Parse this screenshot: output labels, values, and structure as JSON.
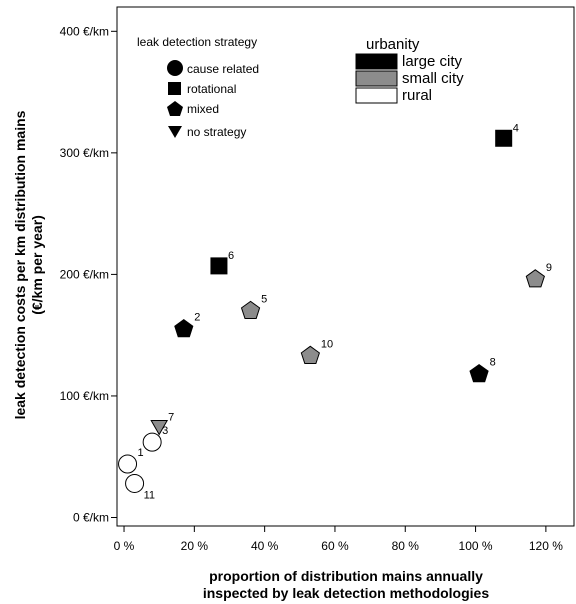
{
  "chart_data": {
    "type": "scatter",
    "xlabel": [
      "proportion of distribution mains annually",
      "inspected by leak detection methodologies"
    ],
    "ylabel": [
      "leak detection costs per km distribution mains",
      "(€/km per year)"
    ],
    "xlim": [
      -0.02,
      1.28
    ],
    "ylim": [
      -7,
      420
    ],
    "x_ticks": [
      0,
      0.2,
      0.4,
      0.6,
      0.8,
      1.0,
      1.2
    ],
    "x_tick_labels": [
      "0 %",
      "20 %",
      "40 %",
      "60 %",
      "80 %",
      "100 %",
      "120 %"
    ],
    "y_ticks": [
      0,
      100,
      200,
      300,
      400
    ],
    "y_tick_labels": [
      "0 €/km",
      "100 €/km",
      "200 €/km",
      "300 €/km",
      "400 €/km"
    ],
    "grid": false,
    "strategy_legend": {
      "title": "leak detection strategy",
      "items": [
        {
          "label": "cause related",
          "shape": "circle"
        },
        {
          "label": "rotational",
          "shape": "square"
        },
        {
          "label": "mixed",
          "shape": "pentagon"
        },
        {
          "label": "no strategy",
          "shape": "triangle"
        }
      ]
    },
    "urbanity_legend": {
      "title": "urbanity",
      "items": [
        {
          "label": "large city",
          "color": "#000000"
        },
        {
          "label": "small city",
          "color": "#8c8c8c"
        },
        {
          "label": "rural",
          "color": "#ffffff"
        }
      ]
    },
    "points": [
      {
        "label": "1",
        "x": 0.01,
        "y": 44,
        "shape": "circle",
        "urbanity": "rural"
      },
      {
        "label": "11",
        "x": 0.03,
        "y": 28,
        "shape": "circle",
        "urbanity": "rural"
      },
      {
        "label": "3",
        "x": 0.08,
        "y": 62,
        "shape": "circle",
        "urbanity": "rural"
      },
      {
        "label": "7",
        "x": 0.1,
        "y": 74,
        "shape": "triangle",
        "urbanity": "small city"
      },
      {
        "label": "2",
        "x": 0.17,
        "y": 155,
        "shape": "pentagon",
        "urbanity": "large city"
      },
      {
        "label": "6",
        "x": 0.27,
        "y": 207,
        "shape": "square",
        "urbanity": "large city"
      },
      {
        "label": "5",
        "x": 0.36,
        "y": 170,
        "shape": "pentagon",
        "urbanity": "small city"
      },
      {
        "label": "10",
        "x": 0.53,
        "y": 133,
        "shape": "pentagon",
        "urbanity": "small city"
      },
      {
        "label": "8",
        "x": 1.01,
        "y": 118,
        "shape": "pentagon",
        "urbanity": "large city"
      },
      {
        "label": "4",
        "x": 1.08,
        "y": 312,
        "shape": "square",
        "urbanity": "large city"
      },
      {
        "label": "9",
        "x": 1.17,
        "y": 196,
        "shape": "pentagon",
        "urbanity": "small city"
      }
    ]
  }
}
